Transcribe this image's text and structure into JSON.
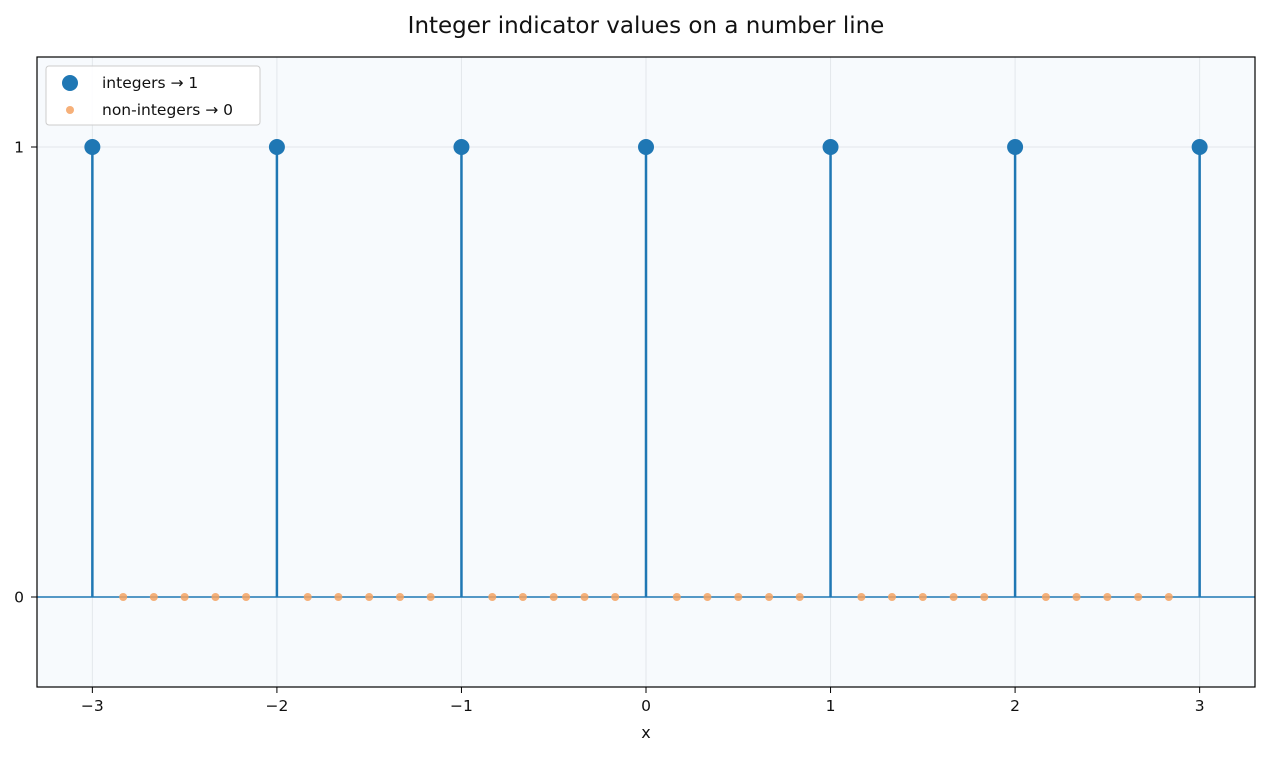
{
  "chart_data": {
    "type": "scatter",
    "title": "Integer indicator values on a number line",
    "xlabel": "x",
    "ylabel": "",
    "xlim": [
      -3.3,
      3.3
    ],
    "ylim": [
      -0.2,
      1.2
    ],
    "xticks": [
      -3,
      -2,
      -1,
      0,
      1,
      2,
      3
    ],
    "xtick_labels": [
      "−3",
      "−2",
      "−1",
      "0",
      "1",
      "2",
      "3"
    ],
    "yticks": [
      0,
      1
    ],
    "ytick_labels": [
      "0",
      "1"
    ],
    "grid": true,
    "legend_position": "upper-left",
    "baseline": 0,
    "series": [
      {
        "name": "integers → 1",
        "color": "#1f77b4",
        "style": "stem-with-large-markers",
        "x": [
          -3,
          -2,
          -1,
          0,
          1,
          2,
          3
        ],
        "y": [
          1,
          1,
          1,
          1,
          1,
          1,
          1
        ]
      },
      {
        "name": "non-integers → 0",
        "color": "#f4a261",
        "style": "small-markers",
        "x": [
          -2.833,
          -2.667,
          -2.5,
          -2.333,
          -2.167,
          -1.833,
          -1.667,
          -1.5,
          -1.333,
          -1.167,
          -0.833,
          -0.667,
          -0.5,
          -0.333,
          -0.167,
          0.167,
          0.333,
          0.5,
          0.667,
          0.833,
          1.167,
          1.333,
          1.5,
          1.667,
          1.833,
          2.167,
          2.333,
          2.5,
          2.667,
          2.833
        ],
        "y": [
          0,
          0,
          0,
          0,
          0,
          0,
          0,
          0,
          0,
          0,
          0,
          0,
          0,
          0,
          0,
          0,
          0,
          0,
          0,
          0,
          0,
          0,
          0,
          0,
          0,
          0,
          0,
          0,
          0,
          0
        ]
      }
    ],
    "colors": {
      "plot_background": "#f7fafd",
      "baseline": "#1f77b4",
      "grid": "#e3e7ec"
    }
  }
}
